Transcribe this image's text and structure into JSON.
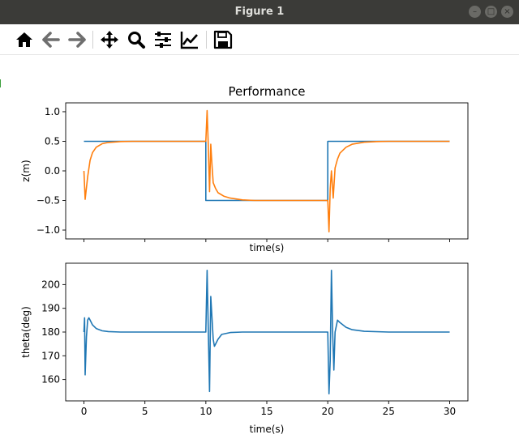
{
  "window": {
    "title": "Figure 1"
  },
  "window_controls": [
    "minimize",
    "maximize",
    "close"
  ],
  "toolbar": {
    "buttons": [
      "home-icon",
      "back-arrow-icon",
      "forward-arrow-icon",
      "pan-move-icon",
      "zoom-magnifier-icon",
      "subplots-sliders-icon",
      "edit-axis-icon",
      "save-floppy-icon"
    ]
  },
  "chart_data": [
    {
      "type": "line",
      "title": "Performance",
      "xlabel": "time(s)",
      "ylabel": "z(m)",
      "xlim": [
        -1.5,
        31.5
      ],
      "ylim": [
        -1.15,
        1.15
      ],
      "xticks": [
        0,
        5,
        10,
        15,
        20,
        25,
        30
      ],
      "xtick_labels_visible": false,
      "yticks": [
        -1.0,
        -0.5,
        0.0,
        0.5,
        1.0
      ],
      "ytick_labels": [
        "−1.0",
        "−0.5",
        "0.0",
        "0.5",
        "1.0"
      ],
      "grid": false,
      "legend": "none",
      "series": [
        {
          "color": "#1f77b4",
          "x": [
            0,
            10,
            10,
            20,
            20,
            30
          ],
          "y": [
            0.5,
            0.5,
            -0.5,
            -0.5,
            0.5,
            0.5
          ]
        },
        {
          "color": "#ff7f0e",
          "x": [
            0,
            0.1,
            0.3,
            0.5,
            0.7,
            1.0,
            1.5,
            2.0,
            3.0,
            4.0,
            5.0,
            10.0,
            10.1,
            10.2,
            10.3,
            10.4,
            10.5,
            10.6,
            10.8,
            11.0,
            11.5,
            12.0,
            13.0,
            14.0,
            15.0,
            20.0,
            20.1,
            20.2,
            20.3,
            20.45,
            20.6,
            20.8,
            21.0,
            21.5,
            22.0,
            23.0,
            24.0,
            25.0,
            30.0
          ],
          "y": [
            0.0,
            -0.48,
            -0.1,
            0.18,
            0.31,
            0.4,
            0.46,
            0.48,
            0.495,
            0.5,
            0.5,
            0.5,
            1.02,
            0.4,
            -0.35,
            0.45,
            0.1,
            -0.2,
            -0.3,
            -0.37,
            -0.43,
            -0.46,
            -0.49,
            -0.5,
            -0.5,
            -0.5,
            -1.03,
            -0.3,
            0.0,
            -0.46,
            0.05,
            0.2,
            0.3,
            0.4,
            0.45,
            0.485,
            0.495,
            0.5,
            0.5
          ]
        }
      ]
    },
    {
      "type": "line",
      "xlabel": "time(s)",
      "ylabel": "theta(deg)",
      "xlim": [
        -1.5,
        31.5
      ],
      "ylim": [
        151,
        209
      ],
      "xticks": [
        0,
        5,
        10,
        15,
        20,
        25,
        30
      ],
      "xtick_labels": [
        "0",
        "5",
        "10",
        "15",
        "20",
        "25",
        "30"
      ],
      "yticks": [
        160,
        170,
        180,
        190,
        200
      ],
      "ytick_labels": [
        "160",
        "170",
        "180",
        "190",
        "200"
      ],
      "grid": false,
      "legend": "none",
      "series": [
        {
          "color": "#1f77b4",
          "x": [
            0,
            0.05,
            0.1,
            0.2,
            0.3,
            0.4,
            0.5,
            0.7,
            1.0,
            1.5,
            2.0,
            3.0,
            5.0,
            10.0,
            10.1,
            10.2,
            10.3,
            10.4,
            10.5,
            10.6,
            10.7,
            10.8,
            11.0,
            11.3,
            12.0,
            13.0,
            15.0,
            20.0,
            20.1,
            20.2,
            20.3,
            20.4,
            20.5,
            20.6,
            20.8,
            21.0,
            21.5,
            22.0,
            23.0,
            25.0,
            30.0
          ],
          "y": [
            180,
            186,
            162,
            178,
            185,
            186,
            185,
            183,
            181.5,
            180.5,
            180.2,
            180,
            180,
            180,
            206,
            180,
            155,
            195,
            186,
            177,
            174,
            175,
            177,
            179,
            179.8,
            180,
            180,
            180,
            154,
            168,
            206,
            180,
            164,
            180,
            185,
            184,
            182,
            181,
            180.3,
            180,
            180
          ]
        }
      ]
    }
  ]
}
